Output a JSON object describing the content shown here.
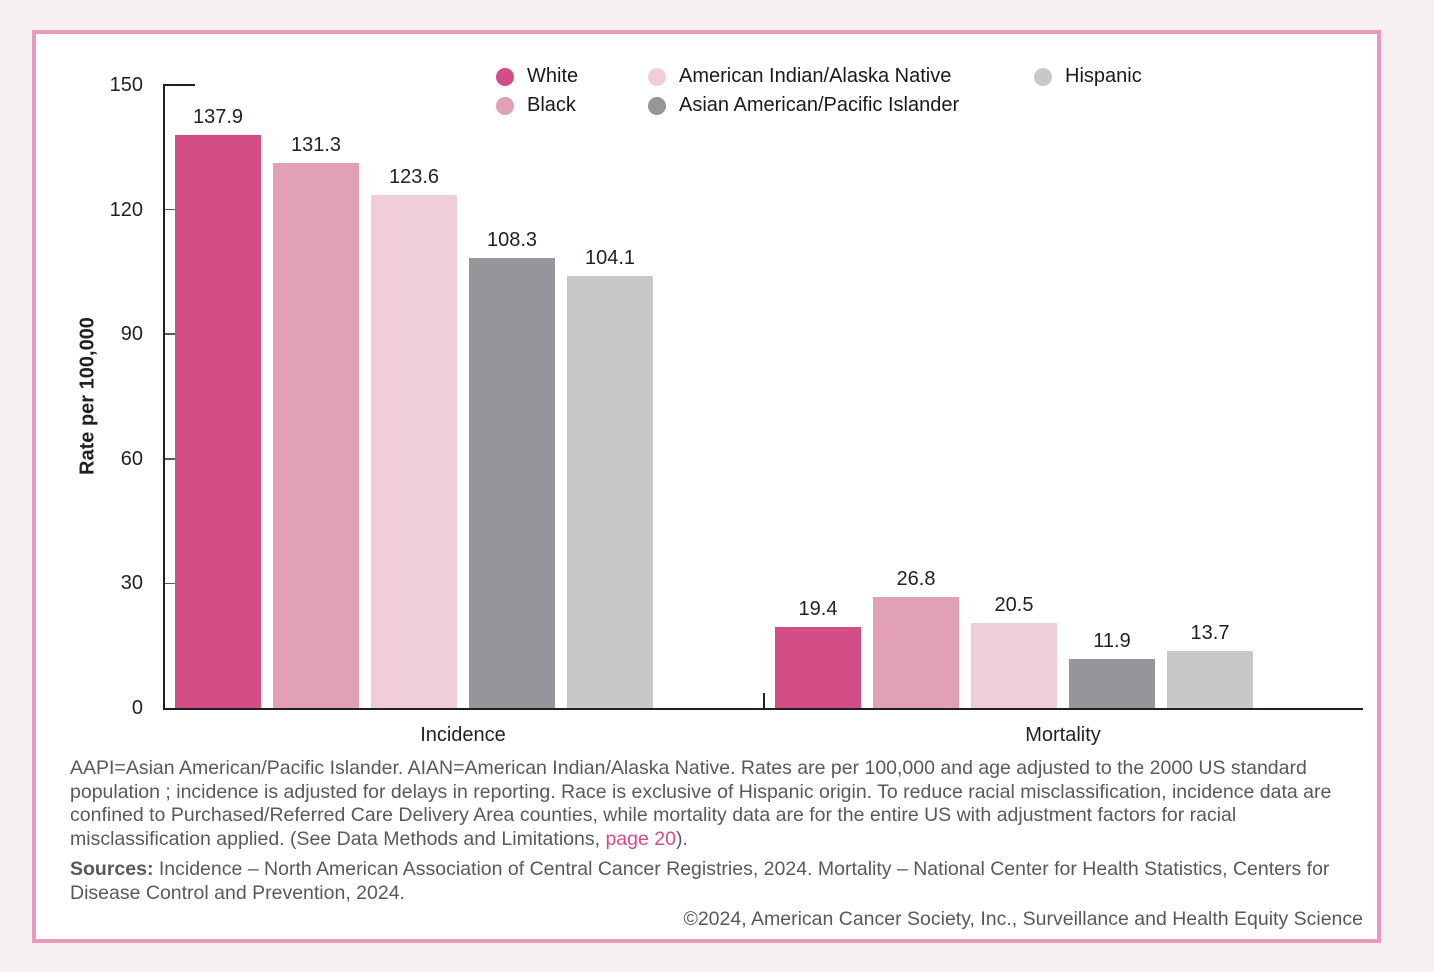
{
  "frame": {
    "outer_background": "#f7f0f3",
    "border_color": "#e999bd",
    "card_background": "#ffffff"
  },
  "chart_data": {
    "type": "bar",
    "title": "",
    "ylabel": "Rate per 100,000",
    "ylim": [
      0,
      150
    ],
    "yticks": [
      0,
      30,
      60,
      90,
      120,
      150
    ],
    "grid": false,
    "legend_position": "top",
    "categories": [
      "Incidence",
      "Mortality"
    ],
    "series": [
      {
        "name": "White",
        "color": "#d34e86",
        "values": [
          137.9,
          19.4
        ]
      },
      {
        "name": "Black",
        "color": "#e2a0b5",
        "values": [
          131.3,
          26.8
        ]
      },
      {
        "name": "American Indian/Alaska Native",
        "color": "#f0ced9",
        "values": [
          123.6,
          20.5
        ]
      },
      {
        "name": "Asian American/Pacific Islander",
        "color": "#969599",
        "values": [
          108.3,
          11.9
        ]
      },
      {
        "name": "Hispanic",
        "color": "#c8c7c9",
        "values": [
          104.1,
          13.7
        ]
      }
    ],
    "value_label_decimals": 1
  },
  "footnote": {
    "text_before_link": "AAPI=Asian American/Pacific Islander. AIAN=American Indian/Alaska Native. Rates are per 100,000 and age adjusted to the 2000 US standard population ; incidence is adjusted for delays in reporting. Race is exclusive of Hispanic origin. To reduce racial misclassification, incidence data are confined to Purchased/Referred Care Delivery Area counties, while mortality data are for the entire US with adjustment factors for racial misclassification applied. (See Data Methods and Limitations, ",
    "link_text": "page 20",
    "text_after_link": ").",
    "link_color": "#d9488c"
  },
  "sources": {
    "label": "Sources:",
    "text": " Incidence – North American Association of Central Cancer Registries, 2024. Mortality – National Center for Health Statistics, Centers for Disease Control and Prevention, 2024."
  },
  "copyright": "©2024, American Cancer Society, Inc., Surveillance and Health Equity Science"
}
